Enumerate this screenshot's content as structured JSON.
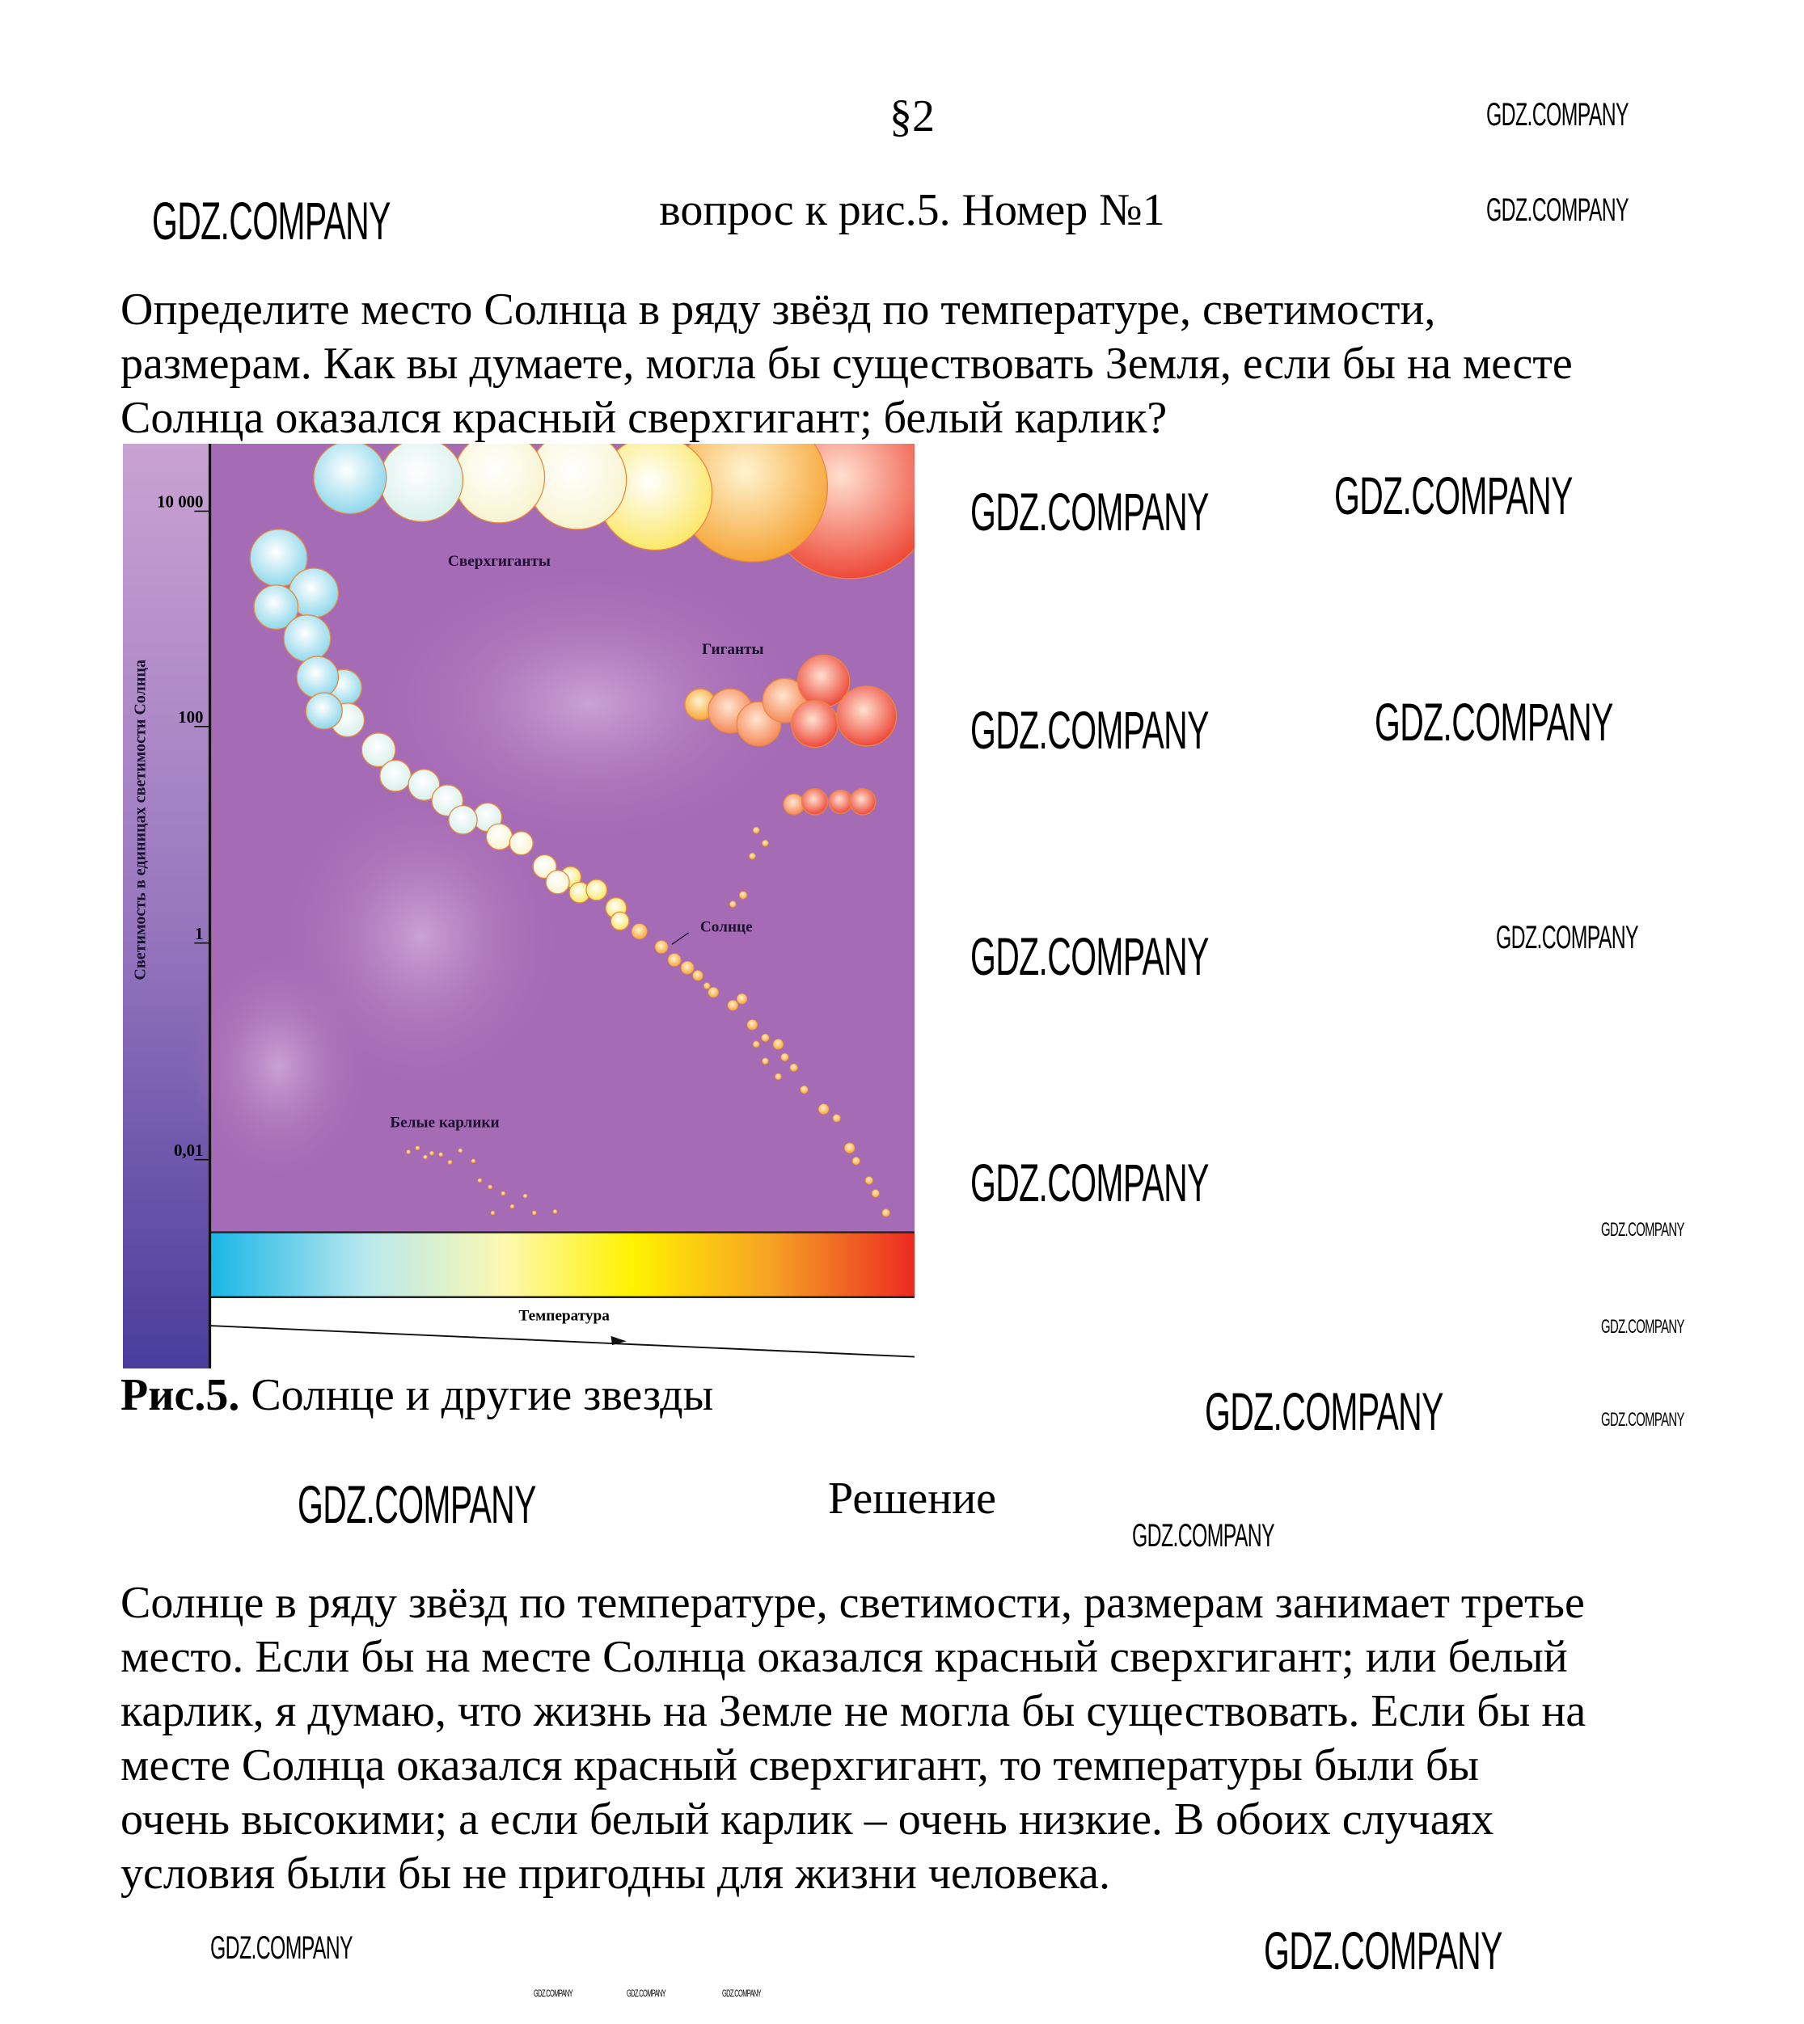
{
  "page": {
    "section": "§2",
    "heading": "вопрос к рис.5. Номер №1",
    "question_lines": [
      "Определите место Солнца в ряду звёзд по температуре, светимости,",
      "размерам. Как вы думаете, могла бы существовать Земля, если бы на месте",
      "Солнца оказался красный сверхгигант; белый карлик?"
    ],
    "caption_label": "Рис.5.",
    "caption_text": " Солнце и другие звезды",
    "solution_heading": "Решение",
    "answer_lines": [
      "Солнце в ряду звёзд по температуре, светимости, размерам занимает третье",
      "место. Если бы на месте Солнца оказался красный сверхгигант; или белый",
      "карлик, я думаю, что жизнь на Земле не могла бы существовать. Если бы на",
      "месте Солнца оказался красный сверхгигант, то температуры были бы",
      "очень высокими; а если белый карлик – очень низкие. В обоих случаях",
      "условия были бы не пригодны для жизни человека."
    ]
  },
  "figure": {
    "y_axis_label": "Светимость в единицах светимости Солнца",
    "y_ticks": [
      "10 000",
      "100",
      "1",
      "0,01"
    ],
    "x_axis_label": "Температура",
    "labels": {
      "supergiants": "Сверхгиганты",
      "giants": "Гиганты",
      "sun": "Солнце",
      "white_dwarfs": "Белые карлики"
    },
    "colors": {
      "background": "#a66bb5",
      "axis_bar_top": "#c9a2d2",
      "axis_bar_bottom": "#4a3d9c",
      "temp_hot": "#19b6e6",
      "temp_mid": "#fff200",
      "temp_cool": "#ec2a22"
    }
  },
  "watermark": "GDZ.COMPANY"
}
